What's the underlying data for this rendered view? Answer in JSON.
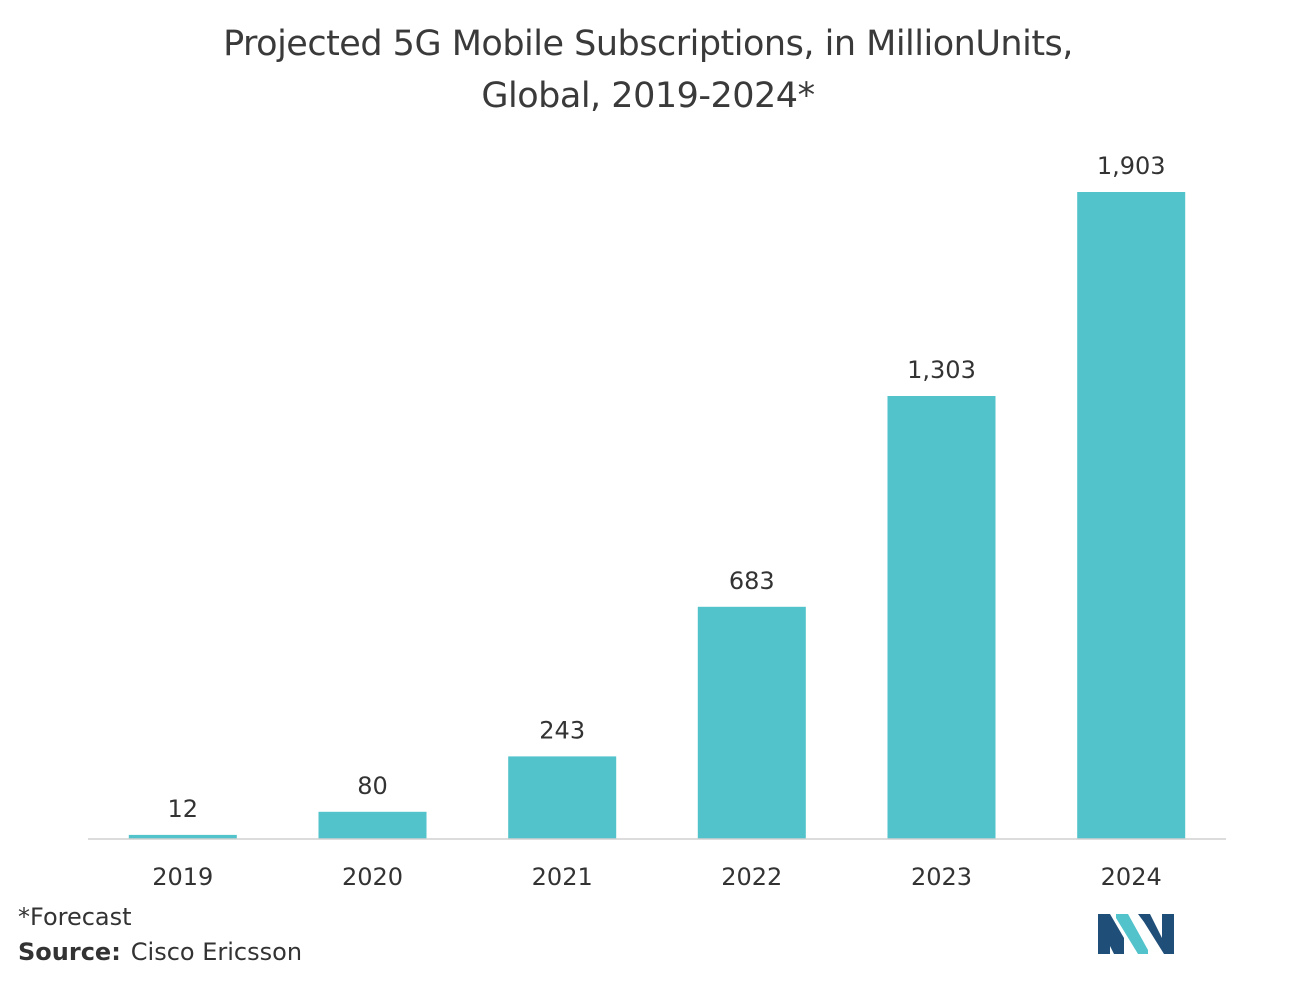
{
  "chart_data": {
    "type": "bar",
    "title_lines": [
      "Projected 5G Mobile Subscriptions, in MillionUnits,",
      "Global, 2019-2024*"
    ],
    "categories": [
      "2019",
      "2020",
      "2021",
      "2022",
      "2023",
      "2024"
    ],
    "values": [
      12,
      80,
      243,
      683,
      1303,
      1903
    ],
    "value_labels": [
      "12",
      "80",
      "243",
      "683",
      "1,303",
      "1,903"
    ],
    "xlabel": "",
    "ylabel": "",
    "ylim": [
      0,
      1903
    ],
    "grid": false,
    "bar_color": "#52c3cb"
  },
  "footnote": "*Forecast",
  "source": {
    "label": "Source:",
    "text": "Cisco Ericsson"
  },
  "logo": {
    "icon": "mordor-intelligence-logo-icon",
    "colors": [
      "#1f4e79",
      "#52c3cb"
    ]
  }
}
